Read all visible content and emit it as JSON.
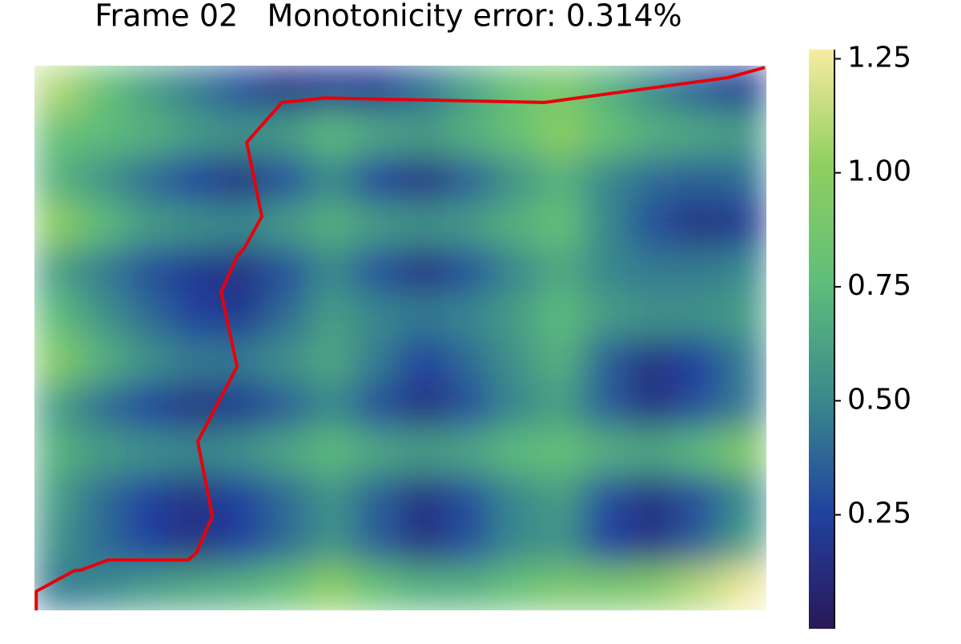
{
  "chart_data": {
    "type": "heatmap",
    "title": "Frame 02   Monotonicity error: 0.314%",
    "z": [
      [
        1.1,
        0.8,
        0.6,
        0.45,
        0.3,
        0.15,
        0.2,
        0.2,
        0.4,
        0.6,
        0.8,
        0.9,
        0.7,
        0.5,
        0.35,
        0.2
      ],
      [
        0.8,
        0.75,
        0.7,
        0.6,
        0.55,
        0.6,
        0.75,
        0.65,
        0.6,
        0.7,
        0.8,
        1.0,
        0.8,
        0.7,
        0.65,
        0.6
      ],
      [
        0.7,
        0.55,
        0.4,
        0.25,
        0.15,
        0.3,
        0.5,
        0.25,
        0.15,
        0.35,
        0.55,
        0.7,
        0.5,
        0.4,
        0.35,
        0.4
      ],
      [
        1.0,
        0.75,
        0.6,
        0.55,
        0.5,
        0.6,
        0.7,
        0.6,
        0.55,
        0.6,
        0.7,
        0.8,
        0.5,
        0.3,
        0.15,
        0.2
      ],
      [
        0.6,
        0.45,
        0.3,
        0.2,
        0.15,
        0.3,
        0.5,
        0.3,
        0.15,
        0.3,
        0.5,
        0.65,
        0.5,
        0.45,
        0.45,
        0.5
      ],
      [
        0.75,
        0.55,
        0.4,
        0.25,
        0.2,
        0.4,
        0.6,
        0.5,
        0.45,
        0.5,
        0.6,
        0.75,
        0.6,
        0.55,
        0.55,
        0.6
      ],
      [
        0.95,
        0.7,
        0.55,
        0.45,
        0.45,
        0.55,
        0.65,
        0.45,
        0.25,
        0.4,
        0.55,
        0.7,
        0.35,
        0.15,
        0.25,
        0.45
      ],
      [
        0.6,
        0.4,
        0.25,
        0.15,
        0.2,
        0.35,
        0.5,
        0.3,
        0.15,
        0.3,
        0.5,
        0.6,
        0.35,
        0.15,
        0.3,
        0.45
      ],
      [
        0.7,
        0.6,
        0.55,
        0.5,
        0.55,
        0.65,
        0.75,
        0.65,
        0.6,
        0.65,
        0.75,
        0.8,
        0.7,
        0.65,
        0.75,
        0.95
      ],
      [
        0.6,
        0.4,
        0.25,
        0.15,
        0.25,
        0.4,
        0.55,
        0.35,
        0.15,
        0.3,
        0.5,
        0.6,
        0.3,
        0.15,
        0.3,
        0.5
      ],
      [
        0.55,
        0.4,
        0.25,
        0.15,
        0.25,
        0.4,
        0.55,
        0.35,
        0.15,
        0.3,
        0.5,
        0.55,
        0.25,
        0.15,
        0.35,
        0.6
      ],
      [
        0.45,
        0.5,
        0.6,
        0.65,
        0.7,
        0.8,
        1.0,
        0.8,
        0.7,
        0.7,
        0.8,
        0.9,
        0.9,
        0.95,
        1.1,
        1.25
      ]
    ],
    "colormap": [
      "#2a1858",
      "#2142a0",
      "#3a8a8c",
      "#5fbe7a",
      "#8fcf5f",
      "#f8eba0"
    ],
    "clim": [
      0,
      1.27
    ],
    "cticks": [
      {
        "value": 0.25,
        "label": "0.25"
      },
      {
        "value": 0.5,
        "label": "0.50"
      },
      {
        "value": 0.75,
        "label": "0.75"
      },
      {
        "value": 1.0,
        "label": "1.00"
      },
      {
        "value": 1.25,
        "label": "1.25"
      }
    ],
    "path": {
      "color": "#e8000b",
      "x": [
        0.04,
        0.04,
        0.88,
        1.0,
        1.61,
        3.36,
        3.54,
        3.89,
        3.57,
        4.43,
        4.08,
        4.43,
        4.59,
        4.97,
        4.64,
        5.41,
        6.34,
        11.15,
        15.18,
        15.96
      ],
      "y": [
        12.0,
        11.58,
        11.12,
        11.12,
        10.89,
        10.89,
        10.73,
        9.93,
        8.28,
        6.63,
        4.99,
        4.2,
        4.02,
        3.32,
        1.69,
        0.81,
        0.71,
        0.81,
        0.26,
        0.04
      ]
    }
  }
}
